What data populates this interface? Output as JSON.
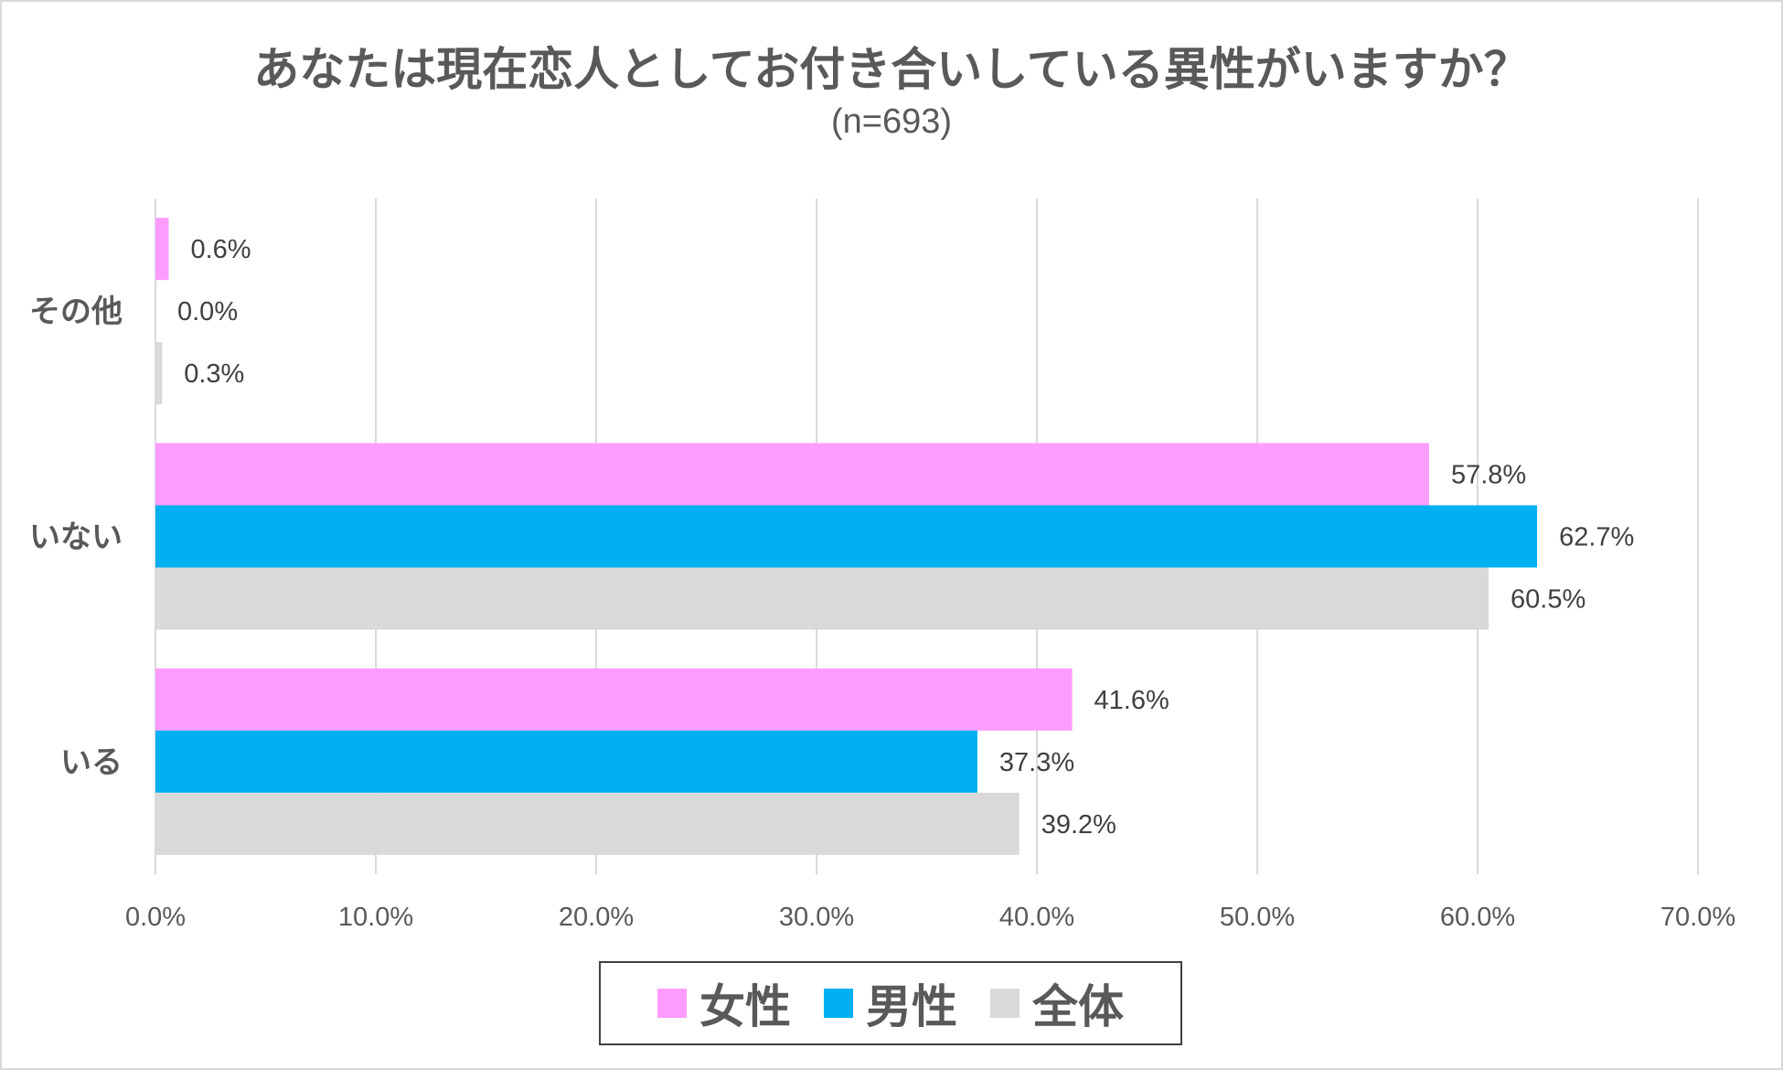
{
  "chart_data": {
    "type": "bar",
    "orientation": "horizontal",
    "title": "あなたは現在恋人としてお付き合いしている異性がいますか？",
    "subtitle": "(n=693)",
    "categories": [
      "その他",
      "いない",
      "いる"
    ],
    "series": [
      {
        "name": "女性",
        "color": "#ff9cff",
        "values": [
          0.6,
          57.8,
          41.6
        ],
        "labels": [
          "0.6%",
          "57.8%",
          "41.6%"
        ]
      },
      {
        "name": "男性",
        "color": "#00b0f0",
        "values": [
          0.0,
          62.7,
          37.3
        ],
        "labels": [
          "0.0%",
          "62.7%",
          "37.3%"
        ]
      },
      {
        "name": "全体",
        "color": "#d9d9d9",
        "values": [
          0.3,
          60.5,
          39.2
        ],
        "labels": [
          "0.3%",
          "60.5%",
          "39.2%"
        ]
      }
    ],
    "xlim": [
      0,
      70
    ],
    "xticks": [
      0,
      10,
      20,
      30,
      40,
      50,
      60,
      70
    ],
    "xtick_labels": [
      "0.0%",
      "10.0%",
      "20.0%",
      "30.0%",
      "40.0%",
      "50.0%",
      "60.0%",
      "70.0%"
    ],
    "grid": "vertical",
    "legend_position": "bottom"
  }
}
